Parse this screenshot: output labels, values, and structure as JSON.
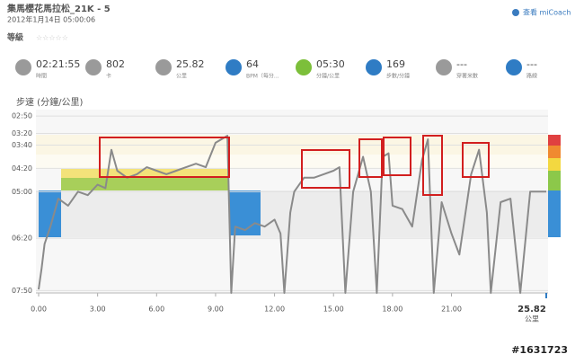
{
  "header": {
    "title": "集馬櫻花馬拉松_21K - 5",
    "date": "2012年1月14日 05:00:06",
    "rating_label": "等級",
    "link": "查看 miCoach"
  },
  "stats": [
    {
      "value": "02:21:55",
      "label": "時間"
    },
    {
      "value": 802,
      "label": "卡"
    },
    {
      "value": 25.82,
      "label": "公里"
    },
    {
      "value": 64,
      "label": "BPM（每分..."
    },
    {
      "value": "05:30",
      "label": "分鐘/公里"
    },
    {
      "value": 169,
      "label": "步數/分鐘"
    },
    {
      "value": "---",
      "label": "穿著米數"
    },
    {
      "value": "---",
      "label": "路線"
    }
  ],
  "chart_data": {
    "type": "line",
    "title": "步速 (分鐘/公里)",
    "color": "#8a8a8a",
    "x": [
      0,
      0.15,
      0.3,
      0.6,
      1.0,
      1.5,
      2.0,
      2.5,
      3.0,
      3.4,
      3.7,
      4.0,
      4.5,
      5.0,
      5.5,
      6.0,
      6.5,
      7.0,
      7.5,
      8.0,
      8.5,
      9.0,
      9.3,
      9.6,
      9.8,
      10.0,
      10.5,
      11.0,
      11.5,
      12.0,
      12.3,
      12.5,
      12.8,
      13.0,
      13.5,
      14.0,
      14.5,
      15.0,
      15.3,
      15.6,
      16.0,
      16.5,
      16.9,
      17.2,
      17.5,
      17.8,
      18.0,
      18.5,
      19.0,
      19.5,
      19.8,
      20.1,
      20.5,
      21.0,
      21.4,
      22.0,
      22.4,
      22.8,
      23.0,
      23.5,
      24.0,
      24.5,
      25.0,
      25.82
    ],
    "values": [
      7.8,
      7.2,
      6.5,
      6.0,
      5.2,
      5.4,
      5.0,
      5.1,
      4.8,
      4.9,
      3.8,
      4.4,
      4.6,
      4.5,
      4.3,
      4.4,
      4.5,
      4.4,
      4.3,
      4.2,
      4.3,
      3.6,
      3.5,
      3.4,
      7.9,
      6.0,
      6.1,
      5.9,
      6.0,
      5.8,
      6.2,
      7.9,
      5.6,
      5.0,
      4.6,
      4.6,
      4.5,
      4.4,
      4.3,
      7.9,
      5.0,
      4.0,
      5.0,
      7.9,
      4.0,
      3.9,
      5.4,
      5.5,
      6.0,
      4.1,
      3.5,
      7.9,
      5.3,
      6.2,
      6.8,
      4.5,
      3.8,
      5.6,
      7.9,
      5.3,
      5.2,
      7.9,
      5.0,
      5.0
    ],
    "xlim": [
      0,
      25.82
    ],
    "ylim": [
      7.9,
      2.65
    ],
    "xticks": [
      {
        "value": 0,
        "label": "0.00"
      },
      {
        "value": 3,
        "label": "3.00"
      },
      {
        "value": 6,
        "label": "6.00"
      },
      {
        "value": 9,
        "label": "9.00"
      },
      {
        "value": 12,
        "label": "12.00"
      },
      {
        "value": 15,
        "label": "15.00"
      },
      {
        "value": 18,
        "label": "18.00"
      },
      {
        "value": 21,
        "label": "21.00"
      }
    ],
    "yticks": [
      {
        "value": 2.8333,
        "label": "02:50"
      },
      {
        "value": 3.3333,
        "label": "03:20"
      },
      {
        "value": 3.6667,
        "label": "03:40"
      },
      {
        "value": 4.3333,
        "label": "04:20"
      },
      {
        "value": 5,
        "label": "05:00"
      },
      {
        "value": 6.3333,
        "label": "06:20"
      },
      {
        "value": 7.8333,
        "label": "07:50"
      }
    ],
    "x_end": 25.82,
    "x_unit": "公里"
  },
  "watermark": "#1631723"
}
